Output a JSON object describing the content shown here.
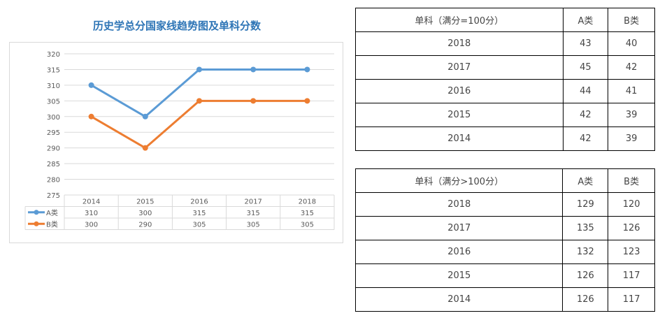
{
  "chart_data": {
    "type": "line",
    "title": "历史学总分国家线趋势图及单科分数",
    "categories": [
      "2014",
      "2015",
      "2016",
      "2017",
      "2018"
    ],
    "series": [
      {
        "name": "A类",
        "values": [
          310,
          300,
          315,
          315,
          315
        ],
        "color": "#5b9bd5"
      },
      {
        "name": "B类",
        "values": [
          300,
          290,
          305,
          305,
          305
        ],
        "color": "#ed7d31"
      }
    ],
    "yticks": [
      275,
      280,
      285,
      290,
      295,
      300,
      305,
      310,
      315,
      320
    ],
    "ylim": [
      275,
      320
    ],
    "grid": true,
    "legend": "data-table-below"
  },
  "table1": {
    "header": [
      "单科（满分=100分）",
      "A类",
      "B类"
    ],
    "rows": [
      [
        "2018",
        "43",
        "40"
      ],
      [
        "2017",
        "45",
        "42"
      ],
      [
        "2016",
        "44",
        "41"
      ],
      [
        "2015",
        "42",
        "39"
      ],
      [
        "2014",
        "42",
        "39"
      ]
    ]
  },
  "table2": {
    "header": [
      "单科（满分>100分）",
      "A类",
      "B类"
    ],
    "rows": [
      [
        "2018",
        "129",
        "120"
      ],
      [
        "2017",
        "135",
        "126"
      ],
      [
        "2016",
        "132",
        "123"
      ],
      [
        "2015",
        "126",
        "117"
      ],
      [
        "2014",
        "126",
        "117"
      ]
    ]
  }
}
